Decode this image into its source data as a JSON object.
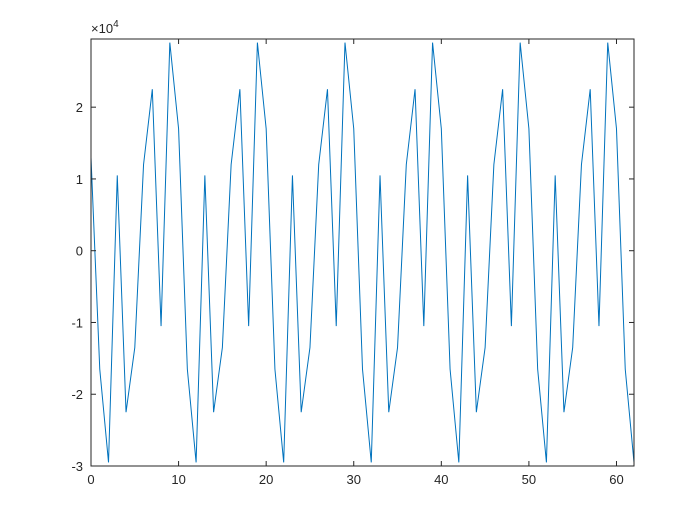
{
  "chart_data": {
    "type": "line",
    "title": "",
    "xlabel": "",
    "ylabel": "",
    "xlim": [
      0,
      62
    ],
    "ylim": [
      -30000,
      29500
    ],
    "x_ticks": [
      0,
      10,
      20,
      30,
      40,
      50,
      60
    ],
    "x_tick_labels": [
      "0",
      "10",
      "20",
      "30",
      "40",
      "50",
      "60"
    ],
    "y_ticks": [
      -30000,
      -20000,
      -10000,
      0,
      10000,
      20000
    ],
    "y_tick_labels": [
      "-3",
      "-2",
      "-1",
      "0",
      "1",
      "2"
    ],
    "y_exponent_label": "×10",
    "y_exponent_power": "4",
    "grid": false,
    "legend": "none",
    "series": [
      {
        "color": "#0072BD",
        "x": [
          0,
          1,
          2,
          3,
          4,
          5,
          6,
          7,
          8,
          9,
          10,
          11,
          12,
          13,
          14,
          15,
          16,
          17,
          18,
          19,
          20,
          21,
          22,
          23,
          24,
          25,
          26,
          27,
          28,
          29,
          30,
          31,
          32,
          33,
          34,
          35,
          36,
          37,
          38,
          39,
          40,
          41,
          42,
          43,
          44,
          45,
          46,
          47,
          48,
          49,
          50,
          51,
          52,
          53,
          54,
          55,
          56,
          57,
          58,
          59,
          60,
          61,
          62
        ],
        "y": [
          13000,
          -16500,
          -29500,
          10500,
          -22500,
          -13500,
          12000,
          22500,
          -10500,
          29000,
          17000,
          -16500,
          -29500,
          10500,
          -22500,
          -13500,
          12000,
          22500,
          -10500,
          29000,
          17000,
          -16500,
          -29500,
          10500,
          -22500,
          -13500,
          12000,
          22500,
          -10500,
          29000,
          17000,
          -16500,
          -29500,
          10500,
          -22500,
          -13500,
          12000,
          22500,
          -10500,
          29000,
          17000,
          -16500,
          -29500,
          10500,
          -22500,
          -13500,
          12000,
          22500,
          -10500,
          29000,
          17000,
          -16500,
          -29500,
          10500,
          -22500,
          -13500,
          12000,
          22500,
          -10500,
          29000,
          17000,
          -16500,
          -29500
        ]
      }
    ]
  }
}
